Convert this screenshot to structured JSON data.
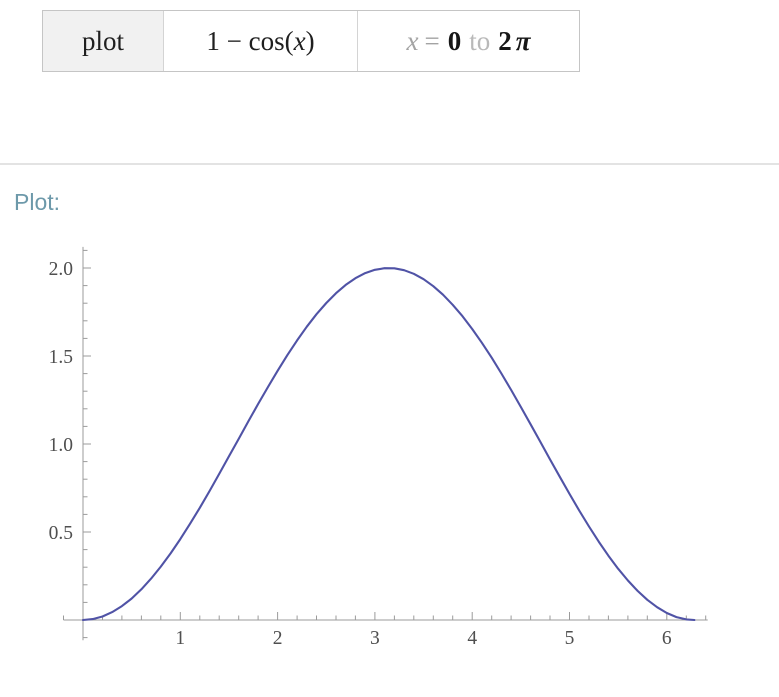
{
  "query_bar": {
    "command": "plot",
    "expression_parts": {
      "prefix": "1 − cos(",
      "variable": "x",
      "suffix": ")"
    },
    "range_parts": {
      "variable": "x",
      "equals": "=",
      "start_value": "0",
      "to_word": "to",
      "end_coefficient": "2",
      "end_symbol": "π"
    }
  },
  "pod": {
    "title": "Plot:"
  },
  "colors": {
    "curve": "#5053a6",
    "axis": "#9b9b9b",
    "tick_label": "#4f4f4f",
    "pod_title": "#6d99aa",
    "divider": "#e3e3e3"
  },
  "chart_data": {
    "type": "line",
    "title": "Plot:",
    "function_label": "1 − cos(x)",
    "xlabel": "",
    "ylabel": "",
    "grid": false,
    "legend": "none",
    "x_start": 0,
    "x_step": 0.1,
    "x_end": 6.2832,
    "y_end": 0,
    "y_values": [
      0,
      0.005,
      0.0199,
      0.0447,
      0.0789,
      0.1224,
      0.1747,
      0.2352,
      0.3033,
      0.3784,
      0.4597,
      0.5464,
      0.6376,
      0.7325,
      0.83,
      0.9293,
      1.0292,
      1.1288,
      1.2272,
      1.3233,
      1.4161,
      1.5048,
      1.5885,
      1.6663,
      1.7374,
      1.8011,
      1.8569,
      1.9041,
      1.9422,
      1.971,
      1.99,
      1.9991,
      1.9983,
      1.9875,
      1.9668,
      1.9365,
      1.8968,
      1.8481,
      1.791,
      1.7259,
      1.6536,
      1.5748,
      1.4903,
      1.4008,
      1.3073,
      1.2108,
      1.1122,
      1.0124,
      0.9125,
      0.8135,
      0.7163,
      0.622,
      0.5315,
      0.4456,
      0.3653,
      0.2913,
      0.2244,
      0.1653,
      0.1145,
      0.0725,
      0.0398,
      0.0167,
      0.0035
    ],
    "xlim": [
      -0.2,
      6.42
    ],
    "ylim": [
      -0.115,
      2.12
    ],
    "x_ticks_major": [
      1,
      2,
      3,
      4,
      5,
      6
    ],
    "x_tick_labels": [
      "1",
      "2",
      "3",
      "4",
      "5",
      "6"
    ],
    "y_ticks_major": [
      0.5,
      1,
      1.5,
      2
    ],
    "y_tick_labels": [
      "0.5",
      "1.0",
      "1.5",
      "2.0"
    ],
    "x_minor_step": 0.2,
    "y_minor_step": 0.1,
    "line_color": "#5053a6",
    "axis_color": "#9b9b9b",
    "tick_label_color": "#4f4f4f"
  }
}
